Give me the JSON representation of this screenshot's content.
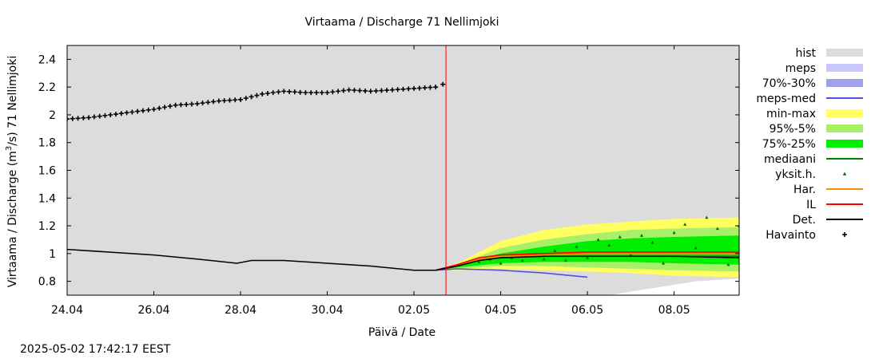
{
  "chart_data": {
    "type": "line",
    "title": "Virtaama / Discharge  71 Nellimjoki",
    "xlabel": "Päivä / Date",
    "ylabel_main": "Virtaama / Discharge (m",
    "ylabel_sup": "3",
    "ylabel_tail": "/s)  71 Nellimjoki",
    "x_range": [
      "2025-04-24",
      "2025-05-09T12:00"
    ],
    "ylim": [
      0.7,
      2.5
    ],
    "x_ticks": [
      {
        "date": "2025-04-24",
        "label": "24.04"
      },
      {
        "date": "2025-04-26",
        "label": "26.04"
      },
      {
        "date": "2025-04-28",
        "label": "28.04"
      },
      {
        "date": "2025-04-30",
        "label": "30.04"
      },
      {
        "date": "2025-05-02",
        "label": "02.05"
      },
      {
        "date": "2025-05-04",
        "label": "04.05"
      },
      {
        "date": "2025-05-06",
        "label": "06.05"
      },
      {
        "date": "2025-05-08",
        "label": "08.05"
      }
    ],
    "y_ticks": [
      {
        "v": 0.8,
        "label": "0.8"
      },
      {
        "v": 1.0,
        "label": "1"
      },
      {
        "v": 1.2,
        "label": "1.2"
      },
      {
        "v": 1.4,
        "label": "1.4"
      },
      {
        "v": 1.6,
        "label": "1.6"
      },
      {
        "v": 1.8,
        "label": "1.8"
      },
      {
        "v": 2.0,
        "label": "2"
      },
      {
        "v": 2.2,
        "label": "2.2"
      },
      {
        "v": 2.4,
        "label": "2.4"
      }
    ],
    "grid": false,
    "legend_position": "right",
    "forecast_start": "2025-05-02T17:42",
    "colors": {
      "background": "#dcdcdc",
      "hist": "#dcdcdc",
      "meps": "#c8c8ff",
      "meps_70_30": "#a0a0e8",
      "meps_med": "#5050e0",
      "min_max": "#ffff60",
      "p95_5": "#a8f068",
      "p75_25": "#00ee00",
      "median": "#008000",
      "members": "#007000",
      "har": "#ff8c00",
      "il": "#ff0000",
      "det": "#000000",
      "obs": "#000000",
      "now_line": "#ff0000",
      "hist_lower": "#ffffff"
    },
    "legend": [
      {
        "key": "hist",
        "label": "hist",
        "kind": "box",
        "color": "#dcdcdc"
      },
      {
        "key": "meps",
        "label": "meps",
        "kind": "box",
        "color": "#c8c8ff"
      },
      {
        "key": "meps_70_30",
        "label": "70%-30%",
        "kind": "box",
        "color": "#a0a0e8"
      },
      {
        "key": "meps_med",
        "label": "meps-med",
        "kind": "line",
        "color": "#5050e0"
      },
      {
        "key": "min_max",
        "label": "min-max",
        "kind": "box",
        "color": "#ffff60"
      },
      {
        "key": "p95_5",
        "label": "95%-5%",
        "kind": "box",
        "color": "#a8f068"
      },
      {
        "key": "p75_25",
        "label": "75%-25%",
        "kind": "box",
        "color": "#00ee00"
      },
      {
        "key": "median",
        "label": "mediaani",
        "kind": "line",
        "color": "#008000"
      },
      {
        "key": "members",
        "label": "yksit.h.",
        "kind": "triangle",
        "color": "#007000"
      },
      {
        "key": "har",
        "label": "Har.",
        "kind": "line",
        "color": "#ff8c00"
      },
      {
        "key": "il",
        "label": "IL",
        "kind": "line",
        "color": "#ff0000"
      },
      {
        "key": "det",
        "label": "Det.",
        "kind": "line",
        "color": "#000000"
      },
      {
        "key": "obs",
        "label": "Havainto",
        "kind": "plus",
        "color": "#000000"
      }
    ],
    "series": [
      {
        "key": "obs",
        "name": "Havainto",
        "points": [
          [
            "2025-04-24T00:00",
            1.97
          ],
          [
            "2025-04-24T12:00",
            1.98
          ],
          [
            "2025-04-25T00:00",
            2.0
          ],
          [
            "2025-04-25T12:00",
            2.02
          ],
          [
            "2025-04-26T00:00",
            2.04
          ],
          [
            "2025-04-26T12:00",
            2.07
          ],
          [
            "2025-04-27T00:00",
            2.08
          ],
          [
            "2025-04-27T12:00",
            2.1
          ],
          [
            "2025-04-28T00:00",
            2.11
          ],
          [
            "2025-04-28T12:00",
            2.15
          ],
          [
            "2025-04-29T00:00",
            2.17
          ],
          [
            "2025-04-29T12:00",
            2.16
          ],
          [
            "2025-04-30T00:00",
            2.16
          ],
          [
            "2025-04-30T12:00",
            2.18
          ],
          [
            "2025-05-01T00:00",
            2.17
          ],
          [
            "2025-05-01T12:00",
            2.18
          ],
          [
            "2025-05-02T00:00",
            2.19
          ],
          [
            "2025-05-02T12:00",
            2.2
          ],
          [
            "2025-05-02T16:00",
            2.22
          ]
        ]
      },
      {
        "key": "det",
        "name": "Det.",
        "points": [
          [
            "2025-04-24T00:00",
            1.03
          ],
          [
            "2025-04-25T00:00",
            1.01
          ],
          [
            "2025-04-26T00:00",
            0.99
          ],
          [
            "2025-04-27T00:00",
            0.96
          ],
          [
            "2025-04-27T22:00",
            0.93
          ],
          [
            "2025-04-28T06:00",
            0.95
          ],
          [
            "2025-04-29T00:00",
            0.95
          ],
          [
            "2025-04-30T00:00",
            0.93
          ],
          [
            "2025-05-01T00:00",
            0.91
          ],
          [
            "2025-05-02T00:00",
            0.88
          ],
          [
            "2025-05-02T12:00",
            0.88
          ],
          [
            "2025-05-03T00:00",
            0.91
          ],
          [
            "2025-05-03T12:00",
            0.95
          ],
          [
            "2025-05-04T00:00",
            0.97
          ],
          [
            "2025-05-05T00:00",
            0.98
          ],
          [
            "2025-05-06T00:00",
            0.98
          ],
          [
            "2025-05-07T00:00",
            0.98
          ],
          [
            "2025-05-08T00:00",
            0.98
          ],
          [
            "2025-05-09T12:00",
            0.97
          ]
        ]
      },
      {
        "key": "il",
        "name": "IL",
        "points": [
          [
            "2025-05-02T12:00",
            0.88
          ],
          [
            "2025-05-03T00:00",
            0.92
          ],
          [
            "2025-05-03T12:00",
            0.97
          ],
          [
            "2025-05-04T00:00",
            0.99
          ],
          [
            "2025-05-05T00:00",
            1.0
          ],
          [
            "2025-05-06T00:00",
            1.01
          ],
          [
            "2025-05-07T00:00",
            1.01
          ],
          [
            "2025-05-08T00:00",
            1.01
          ],
          [
            "2025-05-09T12:00",
            1.01
          ]
        ]
      },
      {
        "key": "har",
        "name": "Har.",
        "points": [
          [
            "2025-05-02T12:00",
            0.88
          ],
          [
            "2025-05-03T00:00",
            0.91
          ],
          [
            "2025-05-03T12:00",
            0.96
          ],
          [
            "2025-05-04T00:00",
            0.98
          ],
          [
            "2025-05-05T00:00",
            0.99
          ],
          [
            "2025-05-06T00:00",
            1.0
          ],
          [
            "2025-05-07T00:00",
            1.0
          ],
          [
            "2025-05-08T00:00",
            1.0
          ],
          [
            "2025-05-09T12:00",
            1.0
          ]
        ]
      },
      {
        "key": "median",
        "name": "mediaani",
        "points": [
          [
            "2025-05-02T12:00",
            0.88
          ],
          [
            "2025-05-03T00:00",
            0.91
          ],
          [
            "2025-05-03T12:00",
            0.95
          ],
          [
            "2025-05-04T00:00",
            0.97
          ],
          [
            "2025-05-05T00:00",
            0.98
          ],
          [
            "2025-05-06T00:00",
            0.98
          ],
          [
            "2025-05-07T00:00",
            0.98
          ],
          [
            "2025-05-08T00:00",
            0.98
          ],
          [
            "2025-05-09T12:00",
            0.98
          ]
        ]
      },
      {
        "key": "meps_med",
        "name": "meps-med",
        "points": [
          [
            "2025-05-02T12:00",
            0.88
          ],
          [
            "2025-05-03T00:00",
            0.89
          ],
          [
            "2025-05-04T00:00",
            0.88
          ],
          [
            "2025-05-05T00:00",
            0.86
          ],
          [
            "2025-05-06T00:00",
            0.83
          ]
        ]
      }
    ],
    "bands": [
      {
        "key": "min_max",
        "name": "min-max",
        "points": [
          [
            "2025-05-02T12:00",
            0.88,
            0.88
          ],
          [
            "2025-05-03T00:00",
            0.88,
            0.93
          ],
          [
            "2025-05-04T00:00",
            0.89,
            1.09
          ],
          [
            "2025-05-05T00:00",
            0.88,
            1.17
          ],
          [
            "2025-05-06T00:00",
            0.87,
            1.21
          ],
          [
            "2025-05-07T00:00",
            0.86,
            1.23
          ],
          [
            "2025-05-08T00:00",
            0.84,
            1.25
          ],
          [
            "2025-05-09T12:00",
            0.83,
            1.26
          ]
        ]
      },
      {
        "key": "p95_5",
        "name": "95%-5%",
        "points": [
          [
            "2025-05-02T12:00",
            0.88,
            0.88
          ],
          [
            "2025-05-03T00:00",
            0.89,
            0.92
          ],
          [
            "2025-05-04T00:00",
            0.91,
            1.04
          ],
          [
            "2025-05-05T00:00",
            0.91,
            1.1
          ],
          [
            "2025-05-06T00:00",
            0.9,
            1.14
          ],
          [
            "2025-05-07T00:00",
            0.89,
            1.17
          ],
          [
            "2025-05-08T00:00",
            0.88,
            1.18
          ],
          [
            "2025-05-09T12:00",
            0.87,
            1.19
          ]
        ]
      },
      {
        "key": "p75_25",
        "name": "75%-25%",
        "points": [
          [
            "2025-05-02T12:00",
            0.88,
            0.88
          ],
          [
            "2025-05-03T00:00",
            0.9,
            0.92
          ],
          [
            "2025-05-04T00:00",
            0.93,
            1.0
          ],
          [
            "2025-05-05T00:00",
            0.94,
            1.05
          ],
          [
            "2025-05-06T00:00",
            0.94,
            1.09
          ],
          [
            "2025-05-07T00:00",
            0.94,
            1.11
          ],
          [
            "2025-05-08T00:00",
            0.93,
            1.12
          ],
          [
            "2025-05-09T12:00",
            0.92,
            1.13
          ]
        ]
      },
      {
        "key": "hist_lower",
        "name": "hist",
        "points": [
          [
            "2025-05-06T12:00",
            0.7,
            0.7
          ],
          [
            "2025-05-07T12:00",
            0.7,
            0.75
          ],
          [
            "2025-05-08T12:00",
            0.7,
            0.8
          ],
          [
            "2025-05-09T12:00",
            0.7,
            0.82
          ]
        ]
      }
    ],
    "members": [
      [
        "2025-05-03T12:00",
        0.94
      ],
      [
        "2025-05-03T18:00",
        0.96
      ],
      [
        "2025-05-04T00:00",
        0.93
      ],
      [
        "2025-05-04T06:00",
        0.97
      ],
      [
        "2025-05-04T12:00",
        0.95
      ],
      [
        "2025-05-04T18:00",
        0.99
      ],
      [
        "2025-05-05T00:00",
        0.96
      ],
      [
        "2025-05-05T06:00",
        1.02
      ],
      [
        "2025-05-05T12:00",
        0.95
      ],
      [
        "2025-05-05T18:00",
        1.05
      ],
      [
        "2025-05-06T00:00",
        0.97
      ],
      [
        "2025-05-06T06:00",
        1.1
      ],
      [
        "2025-05-06T12:00",
        1.06
      ],
      [
        "2025-05-06T18:00",
        1.12
      ],
      [
        "2025-05-07T00:00",
        0.99
      ],
      [
        "2025-05-07T06:00",
        1.13
      ],
      [
        "2025-05-07T12:00",
        1.08
      ],
      [
        "2025-05-07T18:00",
        0.93
      ],
      [
        "2025-05-08T00:00",
        1.15
      ],
      [
        "2025-05-08T06:00",
        1.21
      ],
      [
        "2025-05-08T12:00",
        1.04
      ],
      [
        "2025-05-08T18:00",
        1.26
      ],
      [
        "2025-05-09T00:00",
        1.18
      ],
      [
        "2025-05-09T06:00",
        0.92
      ],
      [
        "2025-05-09T12:00",
        1.2
      ]
    ]
  },
  "footer": {
    "timestamp": "2025-05-02 17:42:17 EEST"
  }
}
